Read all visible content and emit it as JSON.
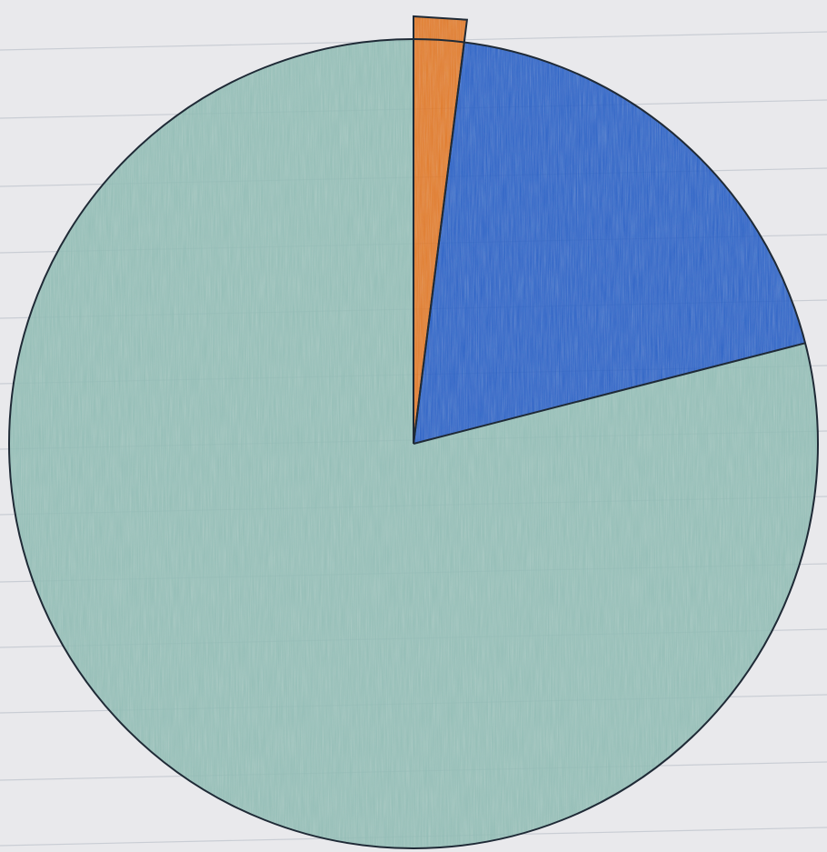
{
  "chart_data": {
    "type": "pie",
    "title": "",
    "start_angle_deg": 0,
    "direction": "clockwise",
    "slices": [
      {
        "label": "",
        "value": 2.0,
        "color": "#e07a2c"
      },
      {
        "label": "",
        "value": 19.0,
        "color": "#2f63c6"
      },
      {
        "label": "",
        "value": 79.0,
        "color": "#93bdb6"
      }
    ],
    "legend": "none"
  },
  "style": {
    "paper_color": "#e9e9ec",
    "line_color": "#c9cdd4",
    "outline_color": "#1f2a36"
  }
}
